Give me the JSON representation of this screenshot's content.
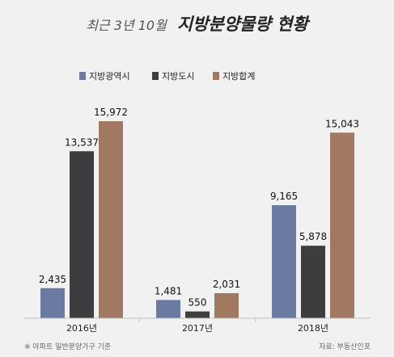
{
  "header": {
    "subtitle": "최근 3년 10월",
    "title": "지방분양물량 현황"
  },
  "chart_data": {
    "type": "bar",
    "title": "지방분양물량 현황",
    "subtitle": "최근 3년 10월",
    "categories": [
      "2016년",
      "2017년",
      "2018년"
    ],
    "series": [
      {
        "name": "지방광역시",
        "color": "#6b7aa0",
        "values": [
          2435,
          1481,
          9165
        ]
      },
      {
        "name": "지방도시",
        "color": "#3d3d40",
        "values": [
          13537,
          550,
          5878
        ]
      },
      {
        "name": "지방합계",
        "color": "#a17962",
        "values": [
          15972,
          2031,
          15043
        ]
      }
    ],
    "value_labels": [
      [
        "2,435",
        "1,481",
        "9,165"
      ],
      [
        "13,537",
        "550",
        "5,878"
      ],
      [
        "15,972",
        "2,031",
        "15,043"
      ]
    ],
    "ylim": [
      0,
      16500
    ],
    "xlabel": "",
    "ylabel": "",
    "grid": false,
    "legend_position": "top-left"
  },
  "footnote": {
    "left": "※ 아파트 일반분양가구 기준",
    "right": "자료: 부동산인포"
  }
}
